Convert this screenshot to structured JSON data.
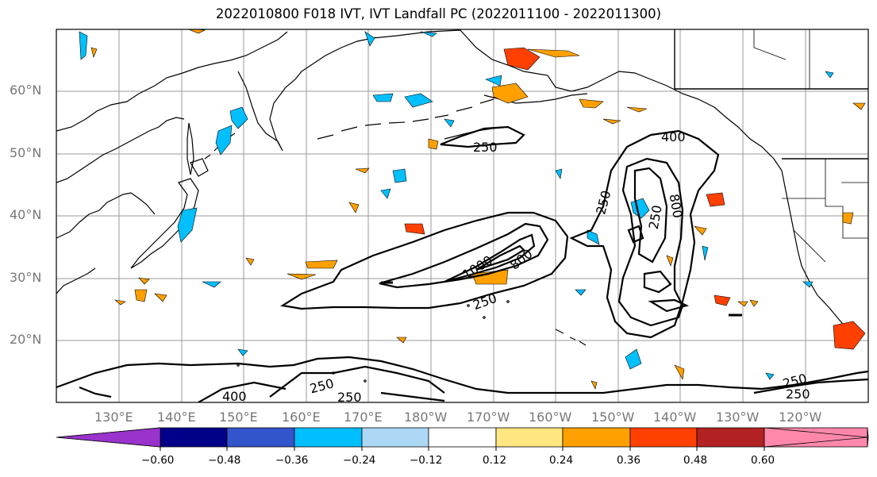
{
  "title": "2022010800 F018 IVT, IVT Landfall PC (2022011100 - 2022011300)",
  "lat_labels": [
    "60°N",
    "50°N",
    "40°N",
    "30°N",
    "20°N"
  ],
  "lon_labels": [
    "130°E",
    "140°E",
    "150°E",
    "160°E",
    "170°E",
    "180°W",
    "170°W",
    "160°W",
    "150°W",
    "140°W",
    "130°W",
    "120°W"
  ],
  "contour_labels": [
    "250",
    "400",
    "250",
    "1000",
    "800",
    "250",
    "400",
    "800",
    "250",
    "250",
    "250",
    "250",
    "250"
  ],
  "colorbar": {
    "ticks": [
      "−0.60",
      "−0.48",
      "−0.36",
      "−0.24",
      "−0.12",
      "0.12",
      "0.24",
      "0.36",
      "0.48",
      "0.60"
    ],
    "colors": [
      "#9933cc",
      "#000088",
      "#3355cc",
      "#00bfff",
      "#add8f5",
      "#ffffff",
      "#ffe680",
      "#ffa000",
      "#ff4000",
      "#b22222",
      "#ff88aa"
    ]
  },
  "colors": {
    "negative_fill": "#00bfff",
    "positive_fill": "#ffa000",
    "positive_strong": "#ff4000",
    "grid": "#999999",
    "coast": "#000000"
  }
}
